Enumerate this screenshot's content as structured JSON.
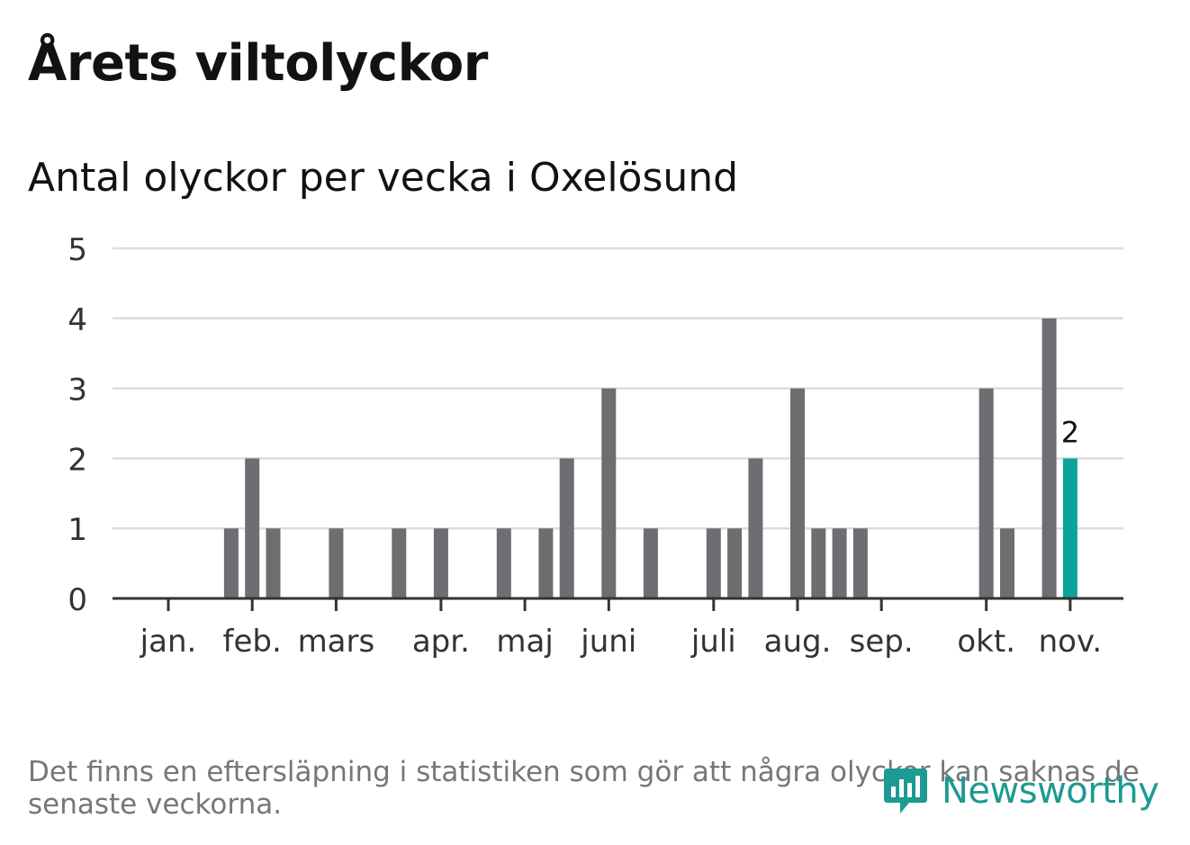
{
  "header": {
    "title": "Årets viltolyckor",
    "subtitle": "Antal olyckor per vecka i Oxelösund"
  },
  "footnote": "Det finns en eftersläpning i statistiken som gör att några olyckor kan saknas de senaste veckorna.",
  "brand": {
    "name": "Newsworthy",
    "color": "#1d9a91",
    "icon": "newsworthy-logo-icon"
  },
  "colors": {
    "bar": "#6e6d72",
    "highlight": "#0ea39a",
    "grid": "#dcdcdc",
    "axis": "#333333",
    "text": "#333333"
  },
  "chart_data": {
    "type": "bar",
    "title": "Antal olyckor per vecka i Oxelösund",
    "xlabel": "",
    "ylabel": "",
    "ylim": [
      0,
      5
    ],
    "yticks": [
      0,
      1,
      2,
      3,
      4,
      5
    ],
    "grid": true,
    "month_ticks": [
      {
        "label": "jan.",
        "week": 1
      },
      {
        "label": "feb.",
        "week": 5
      },
      {
        "label": "mars",
        "week": 9
      },
      {
        "label": "apr.",
        "week": 14
      },
      {
        "label": "maj",
        "week": 18
      },
      {
        "label": "juni",
        "week": 22
      },
      {
        "label": "juli",
        "week": 27
      },
      {
        "label": "aug.",
        "week": 31
      },
      {
        "label": "sep.",
        "week": 35
      },
      {
        "label": "okt.",
        "week": 40
      },
      {
        "label": "nov.",
        "week": 44
      }
    ],
    "weeks": [
      1,
      2,
      3,
      4,
      5,
      6,
      7,
      8,
      9,
      10,
      11,
      12,
      13,
      14,
      15,
      16,
      17,
      18,
      19,
      20,
      21,
      22,
      23,
      24,
      25,
      26,
      27,
      28,
      29,
      30,
      31,
      32,
      33,
      34,
      35,
      36,
      37,
      38,
      39,
      40,
      41,
      42,
      43,
      44
    ],
    "values": [
      0,
      0,
      0,
      1,
      2,
      1,
      0,
      0,
      1,
      0,
      0,
      1,
      0,
      1,
      0,
      0,
      1,
      0,
      1,
      2,
      0,
      3,
      0,
      1,
      0,
      0,
      1,
      1,
      2,
      0,
      3,
      1,
      1,
      1,
      0,
      0,
      0,
      0,
      0,
      3,
      1,
      0,
      4,
      2
    ],
    "highlight_week": 44,
    "highlight_label": "2"
  }
}
